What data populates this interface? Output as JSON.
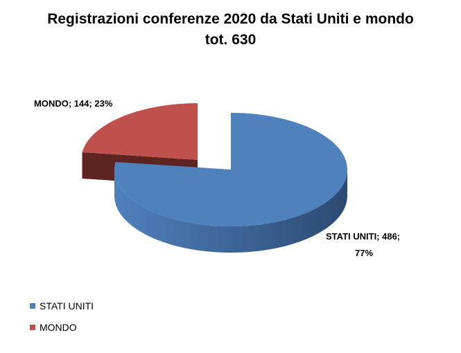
{
  "chart_data": {
    "type": "pie",
    "title_lines": [
      "Registrazioni conferenze 2020 da Stati Uniti e mondo",
      "tot. 630"
    ],
    "slices": [
      {
        "name": "STATI UNITI",
        "value": 486,
        "percent": "77%",
        "label_line1": "STATI UNITI; 486;",
        "label_line2": "77%",
        "color": "#4f81bd",
        "side_color": "#2c4a72"
      },
      {
        "name": "MONDO",
        "value": 144,
        "percent": "23%",
        "label_line1": "MONDO; 144; 23%",
        "label_line2": "",
        "color": "#c0504d",
        "side_color": "#5e2422"
      }
    ],
    "legend": [
      "STATI UNITI",
      "MONDO"
    ],
    "legend_position": "bottom-left"
  }
}
